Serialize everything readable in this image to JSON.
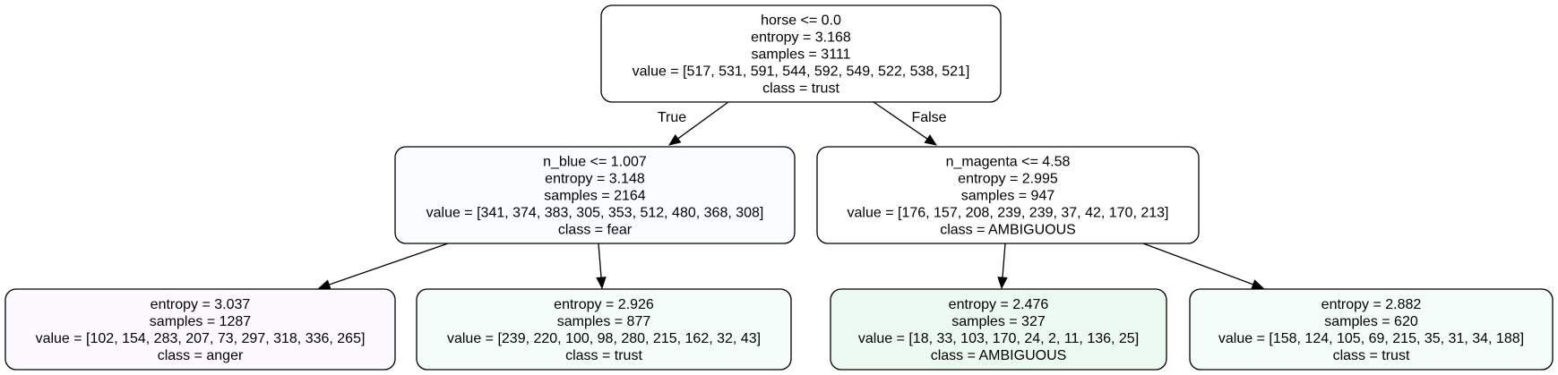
{
  "tree": {
    "nodes": [
      {
        "id": "node-0",
        "lines": [
          "horse <= 0.0",
          "entropy = 3.168",
          "samples = 3111",
          "value = [517, 531, 591, 544, 592, 549, 522, 538, 521]",
          "class = trust"
        ],
        "fill": "#ffffff"
      },
      {
        "id": "node-1",
        "lines": [
          "n_blue <= 1.007",
          "entropy = 3.148",
          "samples = 2164",
          "value = [341, 374, 383, 305, 353, 512, 480, 368, 308]",
          "class = fear"
        ],
        "fill": "#fafcff"
      },
      {
        "id": "node-2",
        "lines": [
          "n_magenta <= 4.58",
          "entropy = 2.995",
          "samples = 947",
          "value = [176, 157, 208, 239, 239, 37, 42, 170, 213]",
          "class = AMBIGUOUS"
        ],
        "fill": "#ffffff"
      },
      {
        "id": "node-3",
        "lines": [
          "entropy = 3.037",
          "samples = 1287",
          "value = [102, 154, 283, 207, 73, 297, 318, 336, 265]",
          "class = anger"
        ],
        "fill": "#fdfaff"
      },
      {
        "id": "node-4",
        "lines": [
          "entropy = 2.926",
          "samples = 877",
          "value = [239, 220, 100, 98, 280, 215, 162, 32, 43]",
          "class = trust"
        ],
        "fill": "#f5fdfb"
      },
      {
        "id": "node-5",
        "lines": [
          "entropy = 2.476",
          "samples = 327",
          "value = [18, 33, 103, 170, 24, 2, 11, 136, 25]",
          "class = AMBIGUOUS"
        ],
        "fill": "#ecfaf1"
      },
      {
        "id": "node-6",
        "lines": [
          "entropy = 2.882",
          "samples = 620",
          "value = [158, 124, 105, 69, 215, 35, 31, 34, 188]",
          "class = trust"
        ],
        "fill": "#f5fdfb"
      }
    ],
    "edges": [
      {
        "from": "node-0",
        "to": "node-1",
        "label": "True"
      },
      {
        "from": "node-0",
        "to": "node-2",
        "label": "False"
      },
      {
        "from": "node-1",
        "to": "node-3",
        "label": ""
      },
      {
        "from": "node-1",
        "to": "node-4",
        "label": ""
      },
      {
        "from": "node-2",
        "to": "node-5",
        "label": ""
      },
      {
        "from": "node-2",
        "to": "node-6",
        "label": ""
      }
    ]
  }
}
